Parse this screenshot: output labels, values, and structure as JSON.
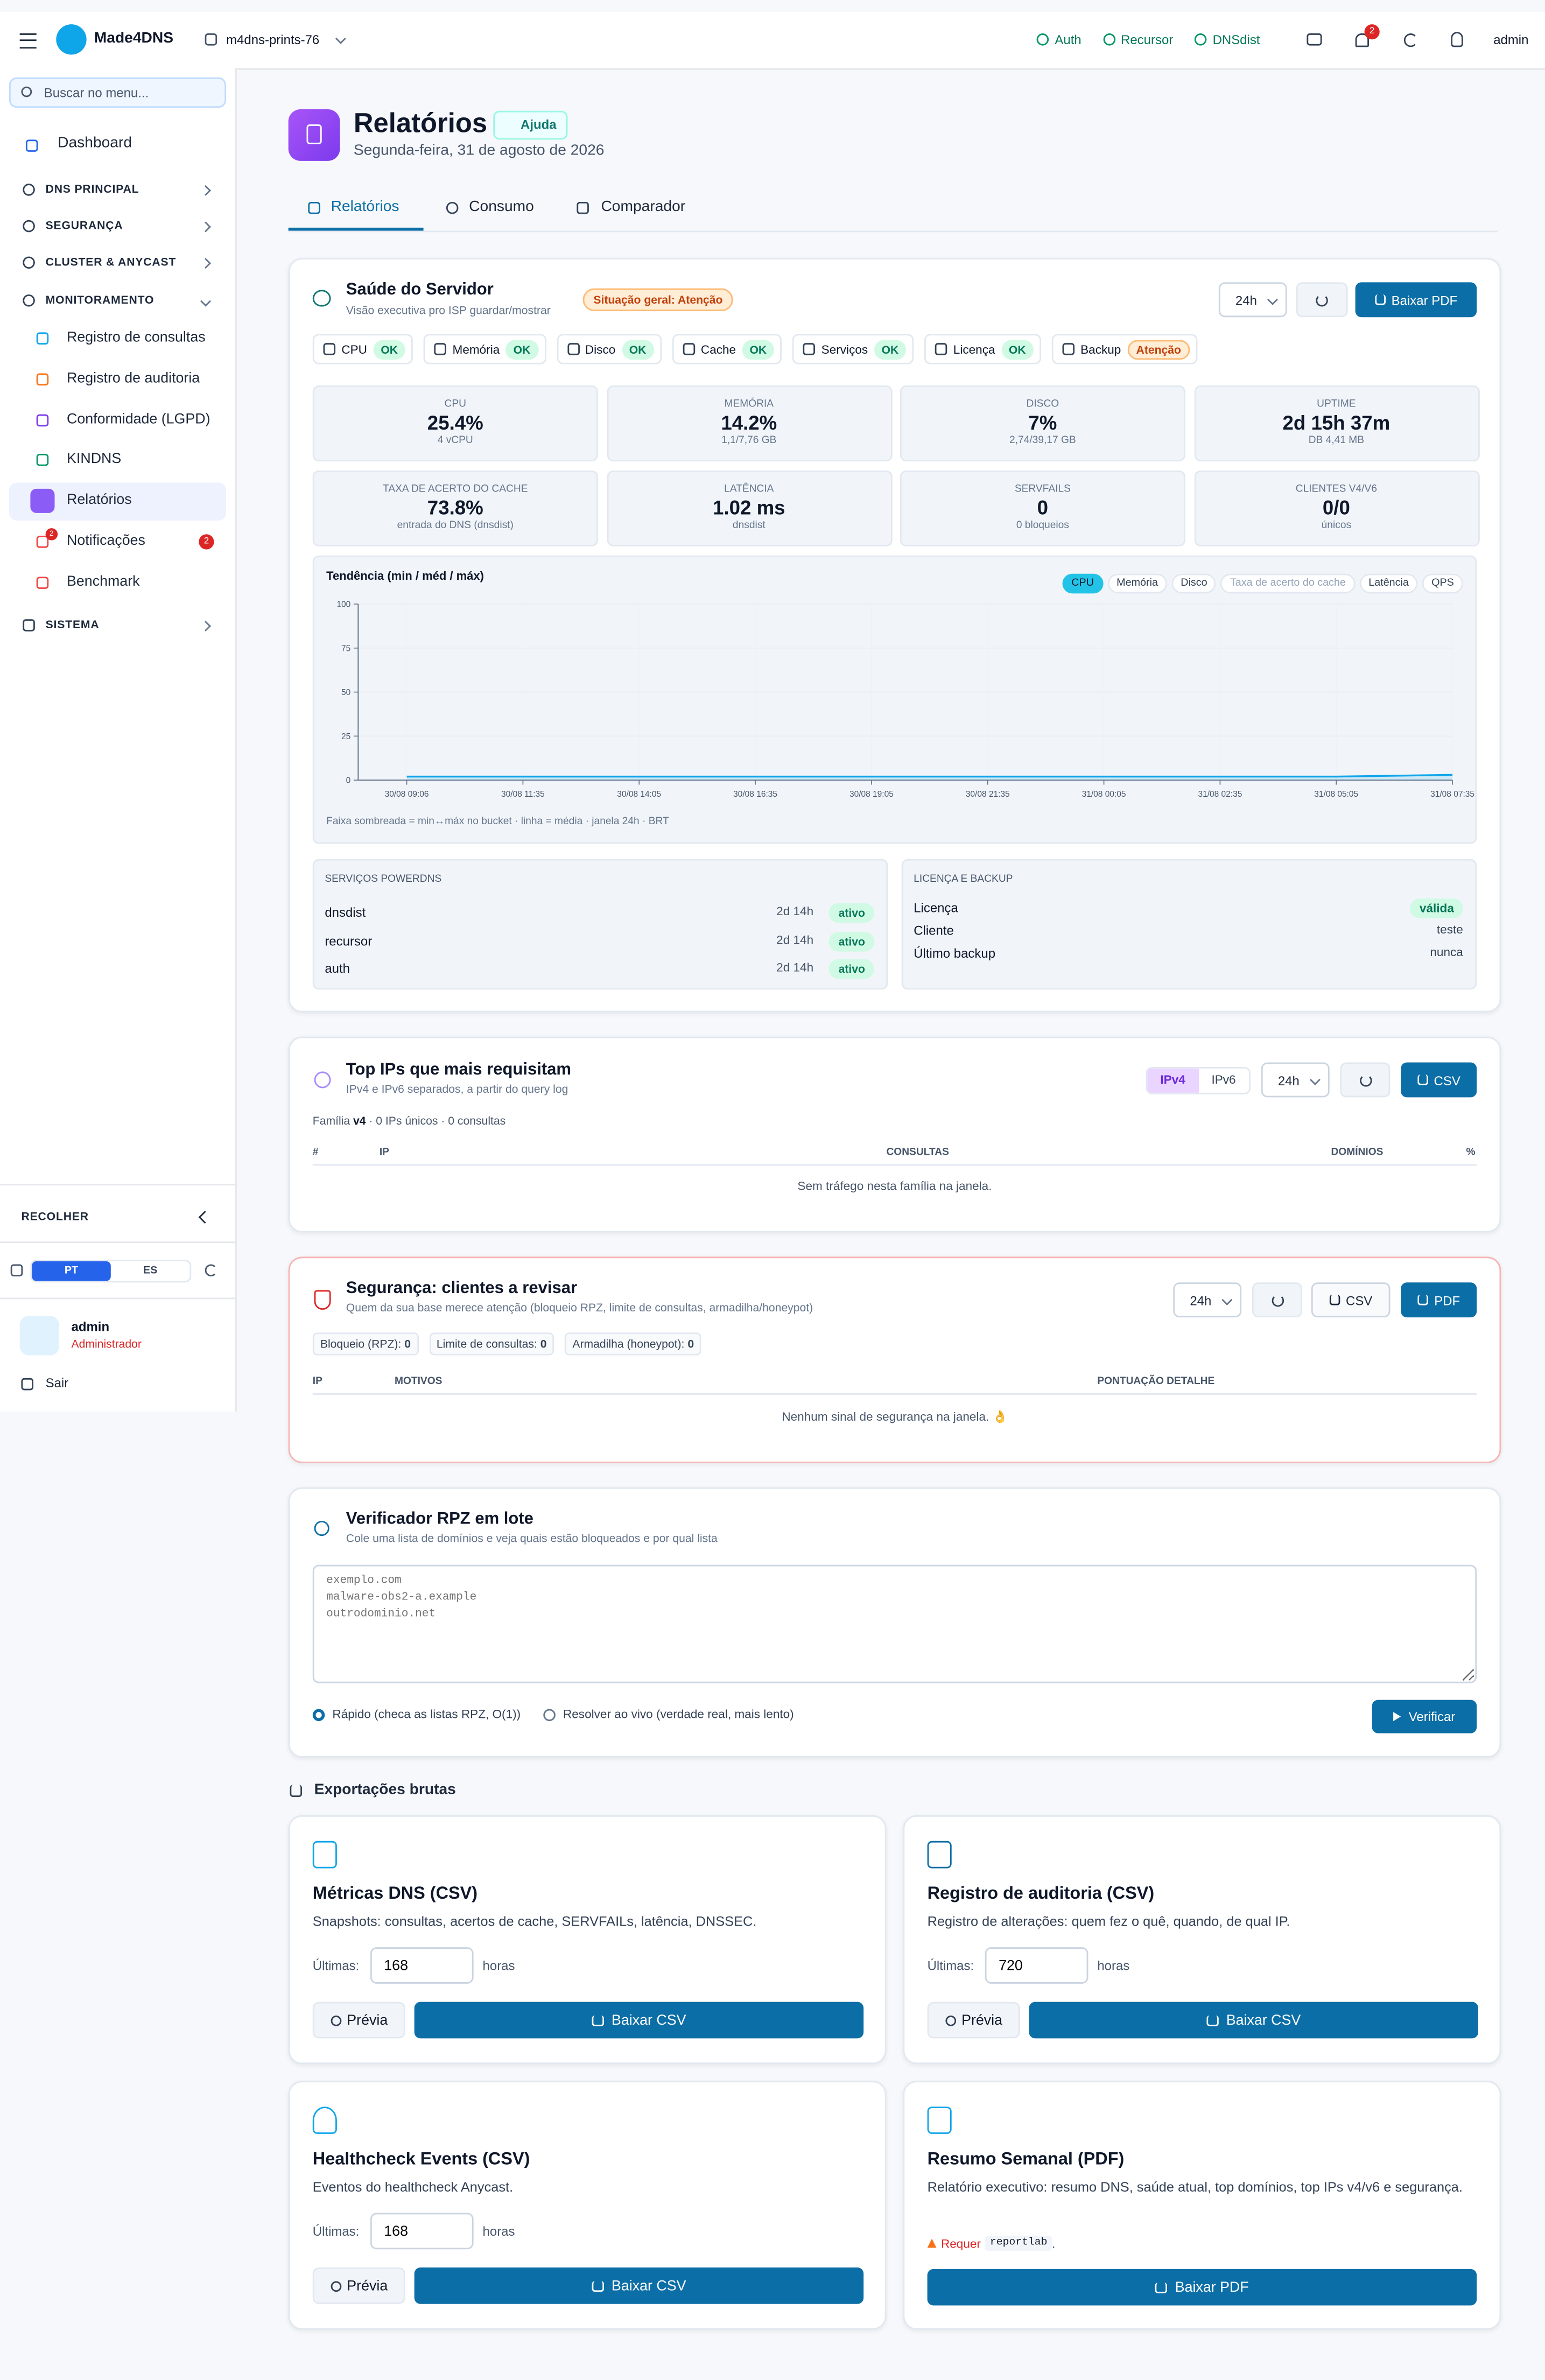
{
  "topbar": {
    "brand": "Made4DNS",
    "server": "m4dns-prints-76",
    "status": [
      "Auth",
      "Recursor",
      "DNSdist"
    ],
    "notif_count": "2",
    "user": "admin"
  },
  "sidebar": {
    "search": "Buscar no menu...",
    "dashboard": "Dashboard",
    "groups": [
      "DNS PRINCIPAL",
      "SEGURANÇA",
      "CLUSTER & ANYCAST",
      "MONITORAMENTO"
    ],
    "monitor_items": [
      "Registro de consultas",
      "Registro de auditoria",
      "Conformidade (LGPD)",
      "KINDNS",
      "Relatórios",
      "Notificações",
      "Benchmark"
    ],
    "notif_badge": "2",
    "sistema": "SISTEMA",
    "collapse": "RECOLHER",
    "langs": [
      "PT",
      "ES"
    ],
    "user": "admin",
    "role": "Administrador",
    "logout": "Sair"
  },
  "header": {
    "title": "Relatórios",
    "help": "Ajuda",
    "date": "Segunda-feira, 31 de agosto de 2026",
    "tabs": [
      "Relatórios",
      "Consumo",
      "Comparador"
    ]
  },
  "health": {
    "title": "Saúde do Servidor",
    "subtitle": "Visão executiva pro ISP guardar/mostrar",
    "overall": "Situação geral: Atenção",
    "range": "24h",
    "pdf": "Baixar PDF",
    "checks": [
      {
        "name": "CPU",
        "status": "OK"
      },
      {
        "name": "Memória",
        "status": "OK"
      },
      {
        "name": "Disco",
        "status": "OK"
      },
      {
        "name": "Cache",
        "status": "OK"
      },
      {
        "name": "Serviços",
        "status": "OK"
      },
      {
        "name": "Licença",
        "status": "OK"
      },
      {
        "name": "Backup",
        "status": "Atenção"
      }
    ],
    "metrics": [
      {
        "label": "CPU",
        "value": "25.4%",
        "sub": "4 vCPU"
      },
      {
        "label": "MEMÓRIA",
        "value": "14.2%",
        "sub": "1,1/7,76 GB"
      },
      {
        "label": "DISCO",
        "value": "7%",
        "sub": "2,74/39,17 GB"
      },
      {
        "label": "UPTIME",
        "value": "2d 15h 37m",
        "sub": "DB 4,41 MB"
      },
      {
        "label": "TAXA DE ACERTO DO CACHE",
        "value": "73.8%",
        "sub": "entrada do DNS (dnsdist)"
      },
      {
        "label": "LATÊNCIA",
        "value": "1.02 ms",
        "sub": "dnsdist"
      },
      {
        "label": "SERVFAILS",
        "value": "0",
        "sub": "0 bloqueios"
      },
      {
        "label": "CLIENTES V4/V6",
        "value": "0/0",
        "sub": "únicos"
      }
    ],
    "trend": {
      "title": "Tendência (min / méd / máx)",
      "chips": [
        "CPU",
        "Memória",
        "Disco",
        "Taxa de acerto do cache",
        "Latência",
        "QPS"
      ],
      "chart": {
        "type": "line",
        "categories": [
          "30/08 09:06",
          "30/08 11:35",
          "30/08 14:05",
          "30/08 16:35",
          "30/08 19:05",
          "30/08 21:35",
          "31/08 00:05",
          "31/08 02:35",
          "31/08 05:05",
          "31/08 07:35"
        ],
        "values": [
          2,
          2,
          2,
          2,
          2,
          2,
          2,
          2,
          2,
          3
        ],
        "color": "#0ea5e9",
        "ylim": [
          0,
          100
        ],
        "yticks": [
          0,
          25,
          50,
          75,
          100
        ]
      },
      "note": "Faixa sombreada = min↔máx no bucket · linha = média · janela 24h · BRT"
    },
    "services": {
      "title": "SERVIÇOS POWERDNS",
      "rows": [
        {
          "name": "dnsdist",
          "uptime": "2d 14h",
          "status": "ativo"
        },
        {
          "name": "recursor",
          "uptime": "2d 14h",
          "status": "ativo"
        },
        {
          "name": "auth",
          "uptime": "2d 14h",
          "status": "ativo"
        }
      ]
    },
    "license": {
      "title": "LICENÇA E BACKUP",
      "rows": [
        [
          "Licença",
          "válida"
        ],
        [
          "Cliente",
          "teste"
        ],
        [
          "Último backup",
          "nunca"
        ]
      ]
    }
  },
  "topips": {
    "title": "Top IPs que mais requisitam",
    "subtitle": "IPv4 e IPv6 separados, a partir do query log",
    "families": [
      "IPv4",
      "IPv6"
    ],
    "range": "24h",
    "csv": "CSV",
    "summary": [
      "Família ",
      "v4",
      " · 0 IPs únicos · 0 consultas"
    ],
    "columns": [
      "#",
      "IP",
      "CONSULTAS",
      "DOMÍNIOS",
      "%"
    ],
    "empty": "Sem tráfego nesta família na janela."
  },
  "security": {
    "title": "Segurança: clientes a revisar",
    "subtitle": "Quem da sua base merece atenção (bloqueio RPZ, limite de consultas, armadilha/honeypot)",
    "range": "24h",
    "csv": "CSV",
    "pdf": "PDF",
    "counters": [
      {
        "label": "Bloqueio (RPZ):",
        "value": "0"
      },
      {
        "label": "Limite de consultas:",
        "value": "0"
      },
      {
        "label": "Armadilha (honeypot):",
        "value": "0"
      }
    ],
    "columns": [
      "IP",
      "MOTIVOS",
      "PONTUAÇÃO DETALHE"
    ],
    "empty": "Nenhum sinal de segurança na janela. 👌"
  },
  "rpz": {
    "title": "Verificador RPZ em lote",
    "subtitle": "Cole uma lista de domínios e veja quais estão bloqueados e por qual lista",
    "placeholder": "exemplo.com\nmalware-obs2-a.example\noutrodominio.net",
    "options": [
      "Rápido (checa as listas RPZ, O(1))",
      "Resolver ao vivo (verdade real, mais lento)"
    ],
    "button": "Verificar"
  },
  "exports": {
    "title": "Exportações brutas",
    "cards": [
      {
        "title": "Métricas DNS (CSV)",
        "desc": "Snapshots: consultas, acertos de cache, SERVFAILs, latência, DNSSEC.",
        "last_label": "Últimas:",
        "hours": "168",
        "unit": "horas",
        "preview": "Prévia",
        "download": "Baixar CSV"
      },
      {
        "title": "Registro de auditoria (CSV)",
        "desc": "Registro de alterações: quem fez o quê, quando, de qual IP.",
        "last_label": "Últimas:",
        "hours": "720",
        "unit": "horas",
        "preview": "Prévia",
        "download": "Baixar CSV"
      },
      {
        "title": "Healthcheck Events (CSV)",
        "desc": "Eventos do healthcheck Anycast.",
        "last_label": "Últimas:",
        "hours": "168",
        "unit": "horas",
        "preview": "Prévia",
        "download": "Baixar CSV"
      },
      {
        "title": "Resumo Semanal (PDF)",
        "desc": "Relatório executivo: resumo DNS, saúde atual, top domínios, top IPs v4/v6 e segurança.",
        "warning": "Requer",
        "code": "reportlab",
        "warning_end": ".",
        "download": "Baixar PDF"
      }
    ]
  }
}
